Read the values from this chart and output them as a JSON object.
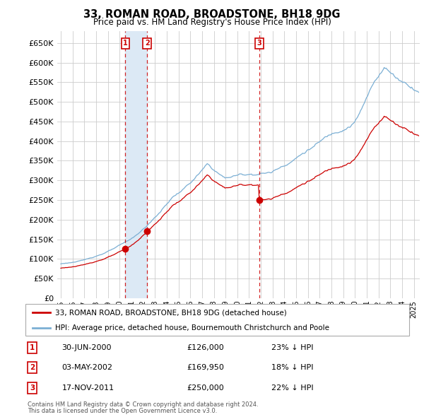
{
  "title": "33, ROMAN ROAD, BROADSTONE, BH18 9DG",
  "subtitle": "Price paid vs. HM Land Registry's House Price Index (HPI)",
  "ytick_values": [
    0,
    50000,
    100000,
    150000,
    200000,
    250000,
    300000,
    350000,
    400000,
    450000,
    500000,
    550000,
    600000,
    650000
  ],
  "ylim": [
    0,
    680000
  ],
  "xlim_start": 1994.7,
  "xlim_end": 2025.5,
  "legend_line1": "33, ROMAN ROAD, BROADSTONE, BH18 9DG (detached house)",
  "legend_line2": "HPI: Average price, detached house, Bournemouth Christchurch and Poole",
  "sales": [
    {
      "num": 1,
      "date_x": 2000.49,
      "price": 126000,
      "label": "1",
      "pct": "23% ↓ HPI",
      "date_str": "30-JUN-2000"
    },
    {
      "num": 2,
      "date_x": 2002.34,
      "price": 169950,
      "label": "2",
      "pct": "18% ↓ HPI",
      "date_str": "03-MAY-2002"
    },
    {
      "num": 3,
      "date_x": 2011.88,
      "price": 250000,
      "label": "3",
      "pct": "22% ↓ HPI",
      "date_str": "17-NOV-2011"
    }
  ],
  "footer1": "Contains HM Land Registry data © Crown copyright and database right 2024.",
  "footer2": "This data is licensed under the Open Government Licence v3.0.",
  "line_red_color": "#cc0000",
  "line_blue_color": "#7bafd4",
  "shade_color": "#dce9f5",
  "bg_color": "#ffffff",
  "grid_color": "#cccccc"
}
